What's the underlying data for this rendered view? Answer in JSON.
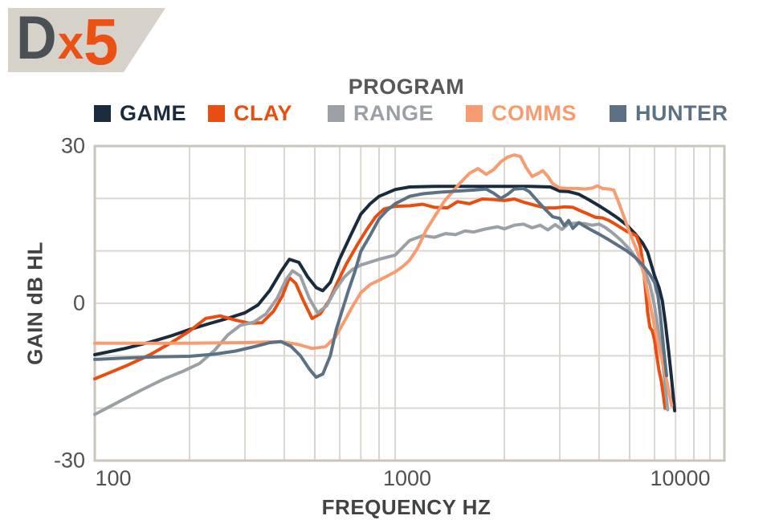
{
  "logo": {
    "d": "D",
    "x": "x",
    "five": "5"
  },
  "chart_data": {
    "type": "line",
    "title": "PROGRAM",
    "xlabel": "FREQUENCY HZ",
    "ylabel": "GAIN dB HL",
    "x_scale": "log",
    "xlim": [
      100,
      10000
    ],
    "ylim": [
      -30,
      30
    ],
    "grid": true,
    "legend_position": "top",
    "x_tick_labels": [
      "100",
      "1000",
      "10000"
    ],
    "x_tick_values": [
      100,
      1000,
      10000
    ],
    "y_tick_labels": [
      "30",
      "0",
      "-30"
    ],
    "y_tick_values": [
      30,
      0,
      -30
    ],
    "y_grid_step": 10,
    "grid_color": "#dbd7d0",
    "border_color": "#cbc6bd",
    "series": [
      {
        "name": "GAME",
        "color": "#1a2b3e",
        "points": [
          [
            100,
            -9.8
          ],
          [
            125,
            -8.6
          ],
          [
            150,
            -7.4
          ],
          [
            175,
            -6.2
          ],
          [
            200,
            -5
          ],
          [
            230,
            -3.9
          ],
          [
            260,
            -3
          ],
          [
            300,
            -1.8
          ],
          [
            330,
            -0.3
          ],
          [
            360,
            2.5
          ],
          [
            390,
            6
          ],
          [
            415,
            8.4
          ],
          [
            445,
            7.8
          ],
          [
            475,
            5
          ],
          [
            505,
            3
          ],
          [
            530,
            2.4
          ],
          [
            560,
            4
          ],
          [
            600,
            8.5
          ],
          [
            650,
            13
          ],
          [
            700,
            17
          ],
          [
            750,
            19
          ],
          [
            800,
            20.4
          ],
          [
            900,
            21.7
          ],
          [
            1000,
            22.2
          ],
          [
            1200,
            22.3
          ],
          [
            1500,
            22.3
          ],
          [
            2000,
            22.3
          ],
          [
            2400,
            22.3
          ],
          [
            2800,
            22.2
          ],
          [
            3000,
            21.4
          ],
          [
            3200,
            21.3
          ],
          [
            3450,
            20.8
          ],
          [
            3700,
            19.8
          ],
          [
            4000,
            18.6
          ],
          [
            4300,
            17.4
          ],
          [
            4600,
            16.2
          ],
          [
            4900,
            14.9
          ],
          [
            5200,
            13.3
          ],
          [
            5500,
            11.5
          ],
          [
            5700,
            9.8
          ],
          [
            6000,
            5.3
          ],
          [
            6200,
            3
          ],
          [
            6350,
            0.5
          ],
          [
            6500,
            -4
          ],
          [
            6650,
            -9
          ],
          [
            6800,
            -14.5
          ],
          [
            6950,
            -20.5
          ]
        ]
      },
      {
        "name": "CLAY",
        "color": "#e84e10",
        "points": [
          [
            100,
            -14.4
          ],
          [
            125,
            -12
          ],
          [
            150,
            -9.8
          ],
          [
            175,
            -7.5
          ],
          [
            200,
            -5.3
          ],
          [
            225,
            -2.9
          ],
          [
            250,
            -2.4
          ],
          [
            280,
            -3.2
          ],
          [
            310,
            -3.8
          ],
          [
            340,
            -3.7
          ],
          [
            370,
            -1.5
          ],
          [
            395,
            1.5
          ],
          [
            415,
            4.9
          ],
          [
            435,
            3.8
          ],
          [
            460,
            0.5
          ],
          [
            490,
            -2.9
          ],
          [
            520,
            -2
          ],
          [
            555,
            0.5
          ],
          [
            590,
            4
          ],
          [
            630,
            7.5
          ],
          [
            680,
            11
          ],
          [
            730,
            14
          ],
          [
            780,
            16.5
          ],
          [
            830,
            18
          ],
          [
            900,
            18.5
          ],
          [
            1000,
            18.6
          ],
          [
            1100,
            18.9
          ],
          [
            1200,
            18.3
          ],
          [
            1320,
            18.2
          ],
          [
            1420,
            19.4
          ],
          [
            1550,
            19
          ],
          [
            1700,
            19.9
          ],
          [
            1850,
            19.8
          ],
          [
            2000,
            19.6
          ],
          [
            2150,
            19.9
          ],
          [
            2300,
            19.3
          ],
          [
            2500,
            18.7
          ],
          [
            2700,
            18.2
          ],
          [
            2900,
            18.2
          ],
          [
            3100,
            18.4
          ],
          [
            3300,
            18.3
          ],
          [
            3500,
            17.6
          ],
          [
            3700,
            17
          ],
          [
            3900,
            16.4
          ],
          [
            4100,
            16.3
          ],
          [
            4300,
            15.8
          ],
          [
            4500,
            15.1
          ],
          [
            4700,
            14.4
          ],
          [
            4900,
            13.7
          ],
          [
            5100,
            13.3
          ],
          [
            5250,
            12.9
          ],
          [
            5400,
            11
          ],
          [
            5500,
            8
          ],
          [
            5600,
            3.5
          ],
          [
            5700,
            -1.5
          ],
          [
            5800,
            -4.6
          ],
          [
            5900,
            -5.2
          ],
          [
            6000,
            -7
          ],
          [
            6100,
            -10
          ],
          [
            6200,
            -12.8
          ],
          [
            6300,
            -14.7
          ],
          [
            6400,
            -17.5
          ],
          [
            6480,
            -20
          ]
        ]
      },
      {
        "name": "RANGE",
        "color": "#9aa0a5",
        "points": [
          [
            100,
            -21.2
          ],
          [
            120,
            -18.7
          ],
          [
            140,
            -16.6
          ],
          [
            165,
            -14.5
          ],
          [
            190,
            -13
          ],
          [
            215,
            -11.5
          ],
          [
            240,
            -9
          ],
          [
            265,
            -6
          ],
          [
            290,
            -4.2
          ],
          [
            320,
            -3.6
          ],
          [
            350,
            -2
          ],
          [
            380,
            1
          ],
          [
            405,
            4.5
          ],
          [
            425,
            6.2
          ],
          [
            450,
            5.2
          ],
          [
            480,
            1
          ],
          [
            510,
            -1.8
          ],
          [
            545,
            -0.5
          ],
          [
            580,
            2.5
          ],
          [
            620,
            5
          ],
          [
            660,
            6.5
          ],
          [
            700,
            7.3
          ],
          [
            800,
            8.4
          ],
          [
            900,
            9.2
          ],
          [
            1000,
            12
          ],
          [
            1100,
            12.9
          ],
          [
            1200,
            12.6
          ],
          [
            1300,
            13.3
          ],
          [
            1400,
            13.1
          ],
          [
            1500,
            13.8
          ],
          [
            1600,
            13.6
          ],
          [
            1750,
            14.2
          ],
          [
            1900,
            14.6
          ],
          [
            2000,
            14.2
          ],
          [
            2150,
            14.9
          ],
          [
            2300,
            15.1
          ],
          [
            2450,
            14.4
          ],
          [
            2600,
            14.9
          ],
          [
            2750,
            14
          ],
          [
            2900,
            15
          ],
          [
            3050,
            14.1
          ],
          [
            3200,
            15.2
          ],
          [
            3400,
            15.3
          ],
          [
            3600,
            15.2
          ],
          [
            3800,
            14.9
          ],
          [
            4000,
            15.1
          ],
          [
            4200,
            14.4
          ],
          [
            4400,
            13.5
          ],
          [
            4700,
            12
          ],
          [
            5000,
            10.3
          ],
          [
            5300,
            8.2
          ],
          [
            5600,
            6
          ],
          [
            5800,
            3.5
          ],
          [
            6000,
            -0.5
          ],
          [
            6150,
            -4.5
          ],
          [
            6300,
            -9
          ],
          [
            6450,
            -14
          ],
          [
            6600,
            -20.3
          ]
        ]
      },
      {
        "name": "COMMS",
        "color": "#f79b70",
        "points": [
          [
            100,
            -7.6
          ],
          [
            200,
            -7.6
          ],
          [
            300,
            -7.5
          ],
          [
            390,
            -7.3
          ],
          [
            440,
            -7.8
          ],
          [
            490,
            -8.6
          ],
          [
            540,
            -8.3
          ],
          [
            580,
            -6.5
          ],
          [
            620,
            -3.5
          ],
          [
            660,
            -0.5
          ],
          [
            700,
            2
          ],
          [
            750,
            3.6
          ],
          [
            800,
            4.4
          ],
          [
            850,
            5.2
          ],
          [
            900,
            6
          ],
          [
            950,
            7
          ],
          [
            1000,
            8.2
          ],
          [
            1060,
            10.5
          ],
          [
            1130,
            14
          ],
          [
            1200,
            16.5
          ],
          [
            1290,
            19.5
          ],
          [
            1380,
            21.5
          ],
          [
            1450,
            23
          ],
          [
            1550,
            24.8
          ],
          [
            1650,
            25.7
          ],
          [
            1750,
            24.6
          ],
          [
            1850,
            25.5
          ],
          [
            1950,
            27
          ],
          [
            2050,
            27.9
          ],
          [
            2150,
            28.3
          ],
          [
            2250,
            28
          ],
          [
            2350,
            25.8
          ],
          [
            2450,
            24.2
          ],
          [
            2550,
            24.7
          ],
          [
            2650,
            25.3
          ],
          [
            2750,
            24.2
          ],
          [
            2850,
            22.8
          ],
          [
            3000,
            22
          ],
          [
            3200,
            21.9
          ],
          [
            3400,
            21.9
          ],
          [
            3600,
            21.8
          ],
          [
            3800,
            22
          ],
          [
            3950,
            22.4
          ],
          [
            4100,
            21.9
          ],
          [
            4300,
            21.8
          ],
          [
            4450,
            21.6
          ],
          [
            4600,
            19.5
          ],
          [
            4800,
            16.5
          ],
          [
            5000,
            13.5
          ],
          [
            5200,
            11
          ],
          [
            5400,
            8.4
          ],
          [
            5600,
            4.5
          ],
          [
            5800,
            0
          ],
          [
            6000,
            -4.4
          ],
          [
            6200,
            -8.5
          ],
          [
            6400,
            -12
          ],
          [
            6600,
            -15.5
          ],
          [
            6800,
            -19.5
          ]
        ]
      },
      {
        "name": "HUNTER",
        "color": "#5d7184",
        "points": [
          [
            100,
            -10.7
          ],
          [
            130,
            -10.4
          ],
          [
            160,
            -10.2
          ],
          [
            200,
            -10.1
          ],
          [
            240,
            -9.7
          ],
          [
            280,
            -9.1
          ],
          [
            320,
            -8.3
          ],
          [
            360,
            -7.5
          ],
          [
            390,
            -7.3
          ],
          [
            420,
            -8.2
          ],
          [
            450,
            -10
          ],
          [
            480,
            -12.5
          ],
          [
            505,
            -14.1
          ],
          [
            530,
            -13.5
          ],
          [
            560,
            -10
          ],
          [
            585,
            -5
          ],
          [
            610,
            -1.5
          ],
          [
            640,
            2.5
          ],
          [
            670,
            6
          ],
          [
            700,
            9.9
          ],
          [
            750,
            13
          ],
          [
            800,
            16.1
          ],
          [
            850,
            17.8
          ],
          [
            900,
            19
          ],
          [
            1000,
            20.4
          ],
          [
            1100,
            20.9
          ],
          [
            1250,
            21.2
          ],
          [
            1400,
            21.4
          ],
          [
            1600,
            21.6
          ],
          [
            1750,
            21.8
          ],
          [
            1850,
            21
          ],
          [
            1950,
            20
          ],
          [
            2050,
            20.8
          ],
          [
            2150,
            21.8
          ],
          [
            2300,
            21.9
          ],
          [
            2400,
            21.3
          ],
          [
            2550,
            19.5
          ],
          [
            2700,
            17.9
          ],
          [
            2850,
            16.5
          ],
          [
            3000,
            16.2
          ],
          [
            3100,
            14.8
          ],
          [
            3200,
            15.8
          ],
          [
            3300,
            14.3
          ],
          [
            3450,
            15.4
          ],
          [
            3600,
            14.7
          ],
          [
            3800,
            13.9
          ],
          [
            4000,
            13.2
          ],
          [
            4300,
            12.1
          ],
          [
            4600,
            11
          ],
          [
            4900,
            10
          ],
          [
            5200,
            8.8
          ],
          [
            5500,
            7.3
          ],
          [
            5800,
            5.5
          ],
          [
            6000,
            4
          ],
          [
            6150,
            1.5
          ],
          [
            6250,
            -2
          ],
          [
            6350,
            -6
          ],
          [
            6450,
            -10
          ],
          [
            6550,
            -13.8
          ]
        ]
      }
    ]
  }
}
